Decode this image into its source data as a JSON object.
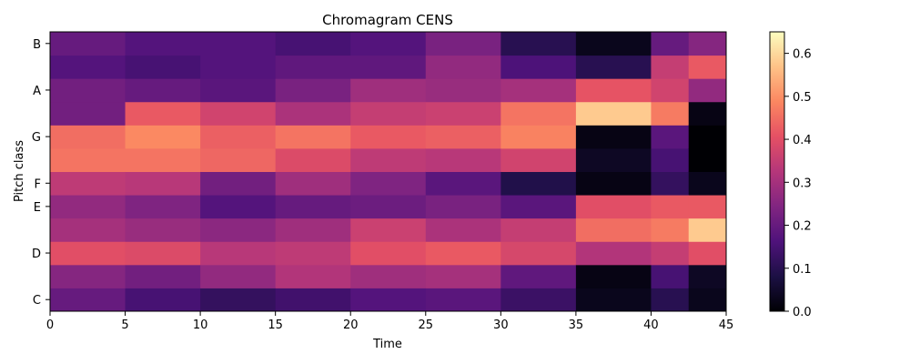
{
  "chart_data": {
    "type": "heatmap",
    "title": "Chromagram CENS",
    "xlabel": "Time",
    "ylabel": "Pitch class",
    "xlim": [
      0,
      45
    ],
    "x_ticks": [
      0,
      5,
      10,
      15,
      20,
      25,
      30,
      35,
      40,
      45
    ],
    "y_tick_labels": [
      "C",
      "D",
      "E",
      "F",
      "G",
      "A",
      "B"
    ],
    "y_tick_positions": [
      0,
      2,
      4,
      5,
      7,
      9,
      11
    ],
    "pitch_classes": 12,
    "colorbar": {
      "ticks": [
        0.0,
        0.1,
        0.2,
        0.3,
        0.4,
        0.5,
        0.6
      ],
      "tick_labels": [
        "0.0",
        "0.1",
        "0.2",
        "0.3",
        "0.4",
        "0.5",
        "0.6"
      ],
      "range": [
        0,
        0.65
      ],
      "colormap": "magma"
    },
    "grid": false,
    "time_segments": [
      {
        "start": 0,
        "end": 5,
        "values": [
          0.2,
          0.25,
          0.4,
          0.3,
          0.27,
          0.34,
          0.46,
          0.45,
          0.22,
          0.22,
          0.17,
          0.2
        ]
      },
      {
        "start": 5,
        "end": 10,
        "values": [
          0.15,
          0.22,
          0.39,
          0.28,
          0.24,
          0.33,
          0.46,
          0.49,
          0.42,
          0.2,
          0.15,
          0.17
        ]
      },
      {
        "start": 10,
        "end": 15,
        "values": [
          0.12,
          0.27,
          0.33,
          0.26,
          0.17,
          0.22,
          0.44,
          0.43,
          0.37,
          0.18,
          0.17,
          0.17
        ]
      },
      {
        "start": 15,
        "end": 20,
        "values": [
          0.14,
          0.32,
          0.34,
          0.29,
          0.2,
          0.29,
          0.39,
          0.46,
          0.31,
          0.23,
          0.19,
          0.15
        ]
      },
      {
        "start": 20,
        "end": 25,
        "values": [
          0.17,
          0.29,
          0.4,
          0.36,
          0.21,
          0.24,
          0.34,
          0.42,
          0.35,
          0.29,
          0.19,
          0.17
        ]
      },
      {
        "start": 25,
        "end": 30,
        "values": [
          0.18,
          0.3,
          0.42,
          0.31,
          0.23,
          0.18,
          0.33,
          0.43,
          0.36,
          0.28,
          0.27,
          0.23
        ]
      },
      {
        "start": 30,
        "end": 35,
        "values": [
          0.13,
          0.19,
          0.38,
          0.35,
          0.18,
          0.09,
          0.37,
          0.48,
          0.46,
          0.3,
          0.16,
          0.1
        ]
      },
      {
        "start": 35,
        "end": 40,
        "values": [
          0.03,
          0.02,
          0.32,
          0.45,
          0.4,
          0.02,
          0.04,
          0.02,
          0.58,
          0.41,
          0.1,
          0.03
        ]
      },
      {
        "start": 40,
        "end": 42.5,
        "values": [
          0.1,
          0.15,
          0.35,
          0.47,
          0.42,
          0.12,
          0.15,
          0.18,
          0.47,
          0.37,
          0.35,
          0.2
        ]
      },
      {
        "start": 42.5,
        "end": 45,
        "values": [
          0.03,
          0.04,
          0.4,
          0.58,
          0.42,
          0.03,
          0.0,
          0.0,
          0.02,
          0.27,
          0.42,
          0.25
        ]
      }
    ]
  }
}
